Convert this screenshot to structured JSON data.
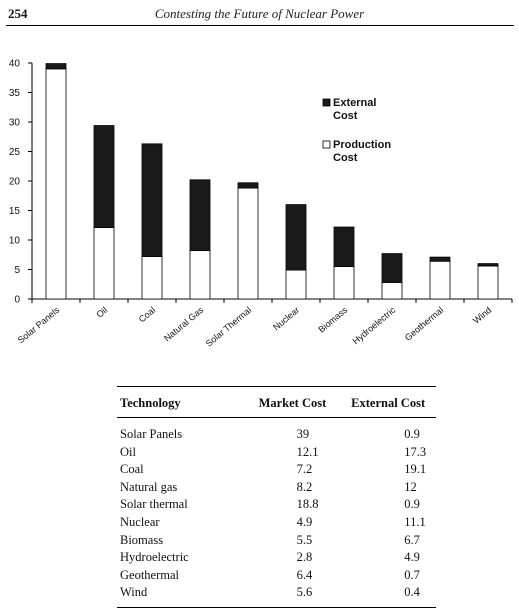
{
  "header": {
    "page_number": "254",
    "running_title": "Contesting the Future of Nuclear Power"
  },
  "chart_data": {
    "type": "bar",
    "stacked": true,
    "categories": [
      "Solar Panels",
      "Oil",
      "Coal",
      "Natural Gas",
      "Solar Thermal",
      "Nuclear",
      "Biomass",
      "Hydroelectric",
      "Geothermal",
      "Wind"
    ],
    "series": [
      {
        "name": "Production Cost",
        "values": [
          39,
          12.1,
          7.2,
          8.2,
          18.8,
          4.9,
          5.5,
          2.8,
          6.4,
          5.6
        ],
        "color": "#ffffff"
      },
      {
        "name": "External Cost",
        "values": [
          0.9,
          17.3,
          19.1,
          12,
          0.9,
          11.1,
          6.7,
          4.9,
          0.7,
          0.4
        ],
        "color": "#1a1a1a"
      }
    ],
    "ylim": [
      0,
      40
    ],
    "yticks": [
      "0",
      "5",
      "10",
      "15",
      "20",
      "25",
      "30",
      "35",
      "40"
    ],
    "legend": [
      {
        "label_line1": "External",
        "label_line2": "Cost",
        "color": "#1a1a1a"
      },
      {
        "label_line1": "Production",
        "label_line2": "Cost",
        "color": "#ffffff"
      }
    ],
    "legend_position": "top-right",
    "grid": false
  },
  "table": {
    "headers": [
      "Technology",
      "Market Cost",
      "External Cost"
    ],
    "rows": [
      [
        "Solar Panels",
        "39",
        "0.9"
      ],
      [
        "Oil",
        "12.1",
        "17.3"
      ],
      [
        "Coal",
        "7.2",
        "19.1"
      ],
      [
        "Natural gas",
        "8.2",
        "12"
      ],
      [
        "Solar thermal",
        "18.8",
        "0.9"
      ],
      [
        "Nuclear",
        "4.9",
        "11.1"
      ],
      [
        "Biomass",
        "5.5",
        "6.7"
      ],
      [
        "Hydroelectric",
        "2.8",
        "4.9"
      ],
      [
        "Geothermal",
        "6.4",
        "0.7"
      ],
      [
        "Wind",
        "5.6",
        "0.4"
      ]
    ]
  }
}
